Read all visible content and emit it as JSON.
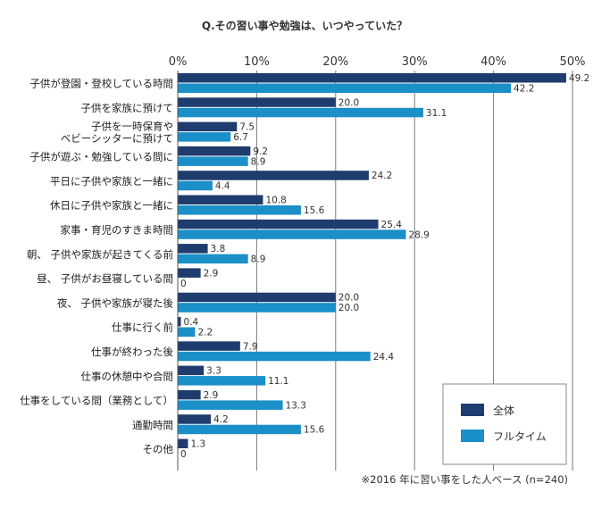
{
  "chart_data": {
    "type": "bar",
    "orientation": "horizontal",
    "title": "Q.その習い事や勉強は、いつやっていた？",
    "xlim": [
      0,
      50
    ],
    "ticks": [
      {
        "value": 0,
        "label": "0%"
      },
      {
        "value": 10,
        "label": "10%"
      },
      {
        "value": 20,
        "label": "20%"
      },
      {
        "value": 30,
        "label": "30%"
      },
      {
        "value": 40,
        "label": "40%"
      },
      {
        "value": 50,
        "label": "50%"
      }
    ],
    "categories": [
      [
        "子供が登園・登校している時間"
      ],
      [
        "子供を家族に預けて"
      ],
      [
        "子供を一時保育や",
        "ベビーシッターに預けて"
      ],
      [
        "子供が遊ぶ・勉強している間に"
      ],
      [
        "平日に子供や家族と一緒に"
      ],
      [
        "休日に子供や家族と一緒に"
      ],
      [
        "家事・育児のすきま時間"
      ],
      [
        "朝、 子供や家族が起きてくる前"
      ],
      [
        "昼、 子供がお昼寝している間"
      ],
      [
        "夜、 子供や家族が寝た後"
      ],
      [
        "仕事に行く前"
      ],
      [
        "仕事が終わった後"
      ],
      [
        "仕事の休憩中や合間"
      ],
      [
        "仕事をしている間（業務として）"
      ],
      [
        "通勤時間"
      ],
      [
        "その他"
      ]
    ],
    "series": [
      {
        "name": "全体",
        "color": "#1f3c6e",
        "values": [
          49.2,
          20.0,
          7.5,
          9.2,
          24.2,
          10.8,
          25.4,
          3.8,
          2.9,
          20.0,
          0.4,
          7.9,
          3.3,
          2.9,
          4.2,
          1.3
        ],
        "labels": [
          "49.2",
          "20.0",
          "7.5",
          "9.2",
          "24.2",
          "10.8",
          "25.4",
          "3.8",
          "2.9",
          "20.0",
          "0.4",
          "7.9",
          "3.3",
          "2.9",
          "4.2",
          "1.3"
        ]
      },
      {
        "name": "フルタイム",
        "color": "#1a8fc8",
        "values": [
          42.2,
          31.1,
          6.7,
          8.9,
          4.4,
          15.6,
          28.9,
          8.9,
          0,
          20.0,
          2.2,
          24.4,
          11.1,
          13.3,
          15.6,
          0
        ],
        "labels": [
          "42.2",
          "31.1",
          "6.7",
          "8.9",
          "4.4",
          "15.6",
          "28.9",
          "8.9",
          "0",
          "20.0",
          "2.2",
          "24.4",
          "11.1",
          "13.3",
          "15.6",
          "0"
        ]
      }
    ],
    "legend_position": "bottom-right",
    "footnote": "※2016 年に習い事をした人ベース (n=240)"
  }
}
